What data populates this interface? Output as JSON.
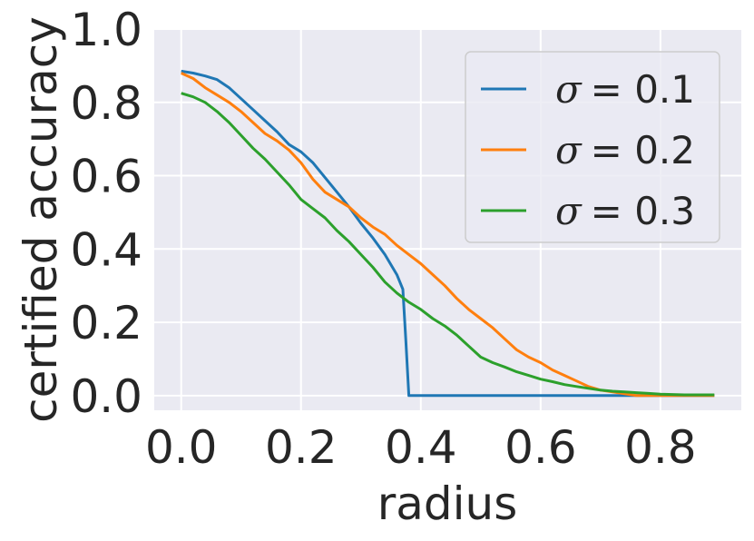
{
  "chart_data": {
    "type": "line",
    "title": "",
    "xlabel": "radius",
    "ylabel": "certified accuracy",
    "xlim": [
      -0.045,
      0.935
    ],
    "ylim": [
      -0.04,
      1.0
    ],
    "xticks": [
      "0.0",
      "0.2",
      "0.4",
      "0.6",
      "0.8"
    ],
    "yticks": [
      "0.0",
      "0.2",
      "0.4",
      "0.6",
      "0.8",
      "1.0"
    ],
    "grid": true,
    "legend_position": "top-right",
    "series": [
      {
        "name": "σ = 0.1",
        "label_symbol": "σ",
        "label_value": "= 0.1",
        "color": "#1f77b4",
        "x": [
          0.0,
          0.02,
          0.04,
          0.06,
          0.08,
          0.1,
          0.12,
          0.14,
          0.16,
          0.18,
          0.2,
          0.22,
          0.24,
          0.26,
          0.28,
          0.3,
          0.32,
          0.34,
          0.36,
          0.37,
          0.375,
          0.38,
          0.4,
          0.5,
          0.6,
          0.7,
          0.8,
          0.89
        ],
        "y": [
          0.885,
          0.88,
          0.872,
          0.862,
          0.84,
          0.81,
          0.78,
          0.75,
          0.72,
          0.685,
          0.665,
          0.635,
          0.595,
          0.555,
          0.515,
          0.47,
          0.43,
          0.385,
          0.33,
          0.29,
          0.15,
          0.0,
          0.0,
          0.0,
          0.0,
          0.0,
          0.0,
          0.0
        ]
      },
      {
        "name": "σ = 0.2",
        "label_symbol": "σ",
        "label_value": "= 0.2",
        "color": "#ff7f0e",
        "x": [
          0.0,
          0.02,
          0.04,
          0.06,
          0.08,
          0.1,
          0.12,
          0.14,
          0.16,
          0.18,
          0.2,
          0.22,
          0.24,
          0.26,
          0.28,
          0.3,
          0.32,
          0.34,
          0.36,
          0.38,
          0.4,
          0.42,
          0.44,
          0.46,
          0.48,
          0.5,
          0.52,
          0.54,
          0.56,
          0.58,
          0.6,
          0.62,
          0.64,
          0.66,
          0.68,
          0.7,
          0.72,
          0.74,
          0.76,
          0.78,
          0.8,
          0.82,
          0.84,
          0.86,
          0.89
        ],
        "y": [
          0.88,
          0.865,
          0.84,
          0.82,
          0.8,
          0.775,
          0.745,
          0.715,
          0.695,
          0.67,
          0.635,
          0.59,
          0.555,
          0.535,
          0.515,
          0.485,
          0.46,
          0.44,
          0.41,
          0.385,
          0.36,
          0.33,
          0.3,
          0.265,
          0.235,
          0.21,
          0.185,
          0.155,
          0.125,
          0.105,
          0.09,
          0.07,
          0.055,
          0.04,
          0.025,
          0.015,
          0.01,
          0.005,
          0.0,
          0.0,
          0.0,
          0.0,
          0.0,
          0.0,
          0.0
        ]
      },
      {
        "name": "σ = 0.3",
        "label_symbol": "σ",
        "label_value": "= 0.3",
        "color": "#2ca02c",
        "x": [
          0.0,
          0.02,
          0.04,
          0.06,
          0.08,
          0.1,
          0.12,
          0.14,
          0.16,
          0.18,
          0.2,
          0.22,
          0.24,
          0.26,
          0.28,
          0.3,
          0.32,
          0.34,
          0.36,
          0.38,
          0.4,
          0.42,
          0.44,
          0.46,
          0.48,
          0.5,
          0.52,
          0.54,
          0.56,
          0.58,
          0.6,
          0.62,
          0.64,
          0.66,
          0.68,
          0.7,
          0.72,
          0.74,
          0.76,
          0.78,
          0.8,
          0.82,
          0.84,
          0.86,
          0.89
        ],
        "y": [
          0.825,
          0.815,
          0.8,
          0.775,
          0.745,
          0.71,
          0.675,
          0.645,
          0.61,
          0.575,
          0.535,
          0.51,
          0.485,
          0.45,
          0.42,
          0.385,
          0.35,
          0.31,
          0.28,
          0.255,
          0.235,
          0.21,
          0.19,
          0.165,
          0.135,
          0.105,
          0.09,
          0.078,
          0.065,
          0.055,
          0.045,
          0.038,
          0.03,
          0.025,
          0.02,
          0.015,
          0.012,
          0.01,
          0.008,
          0.006,
          0.004,
          0.003,
          0.002,
          0.002,
          0.002
        ]
      }
    ]
  }
}
